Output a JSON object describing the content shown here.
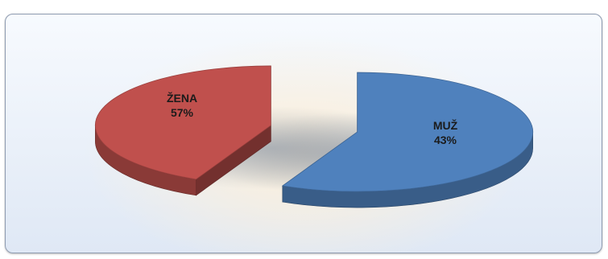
{
  "chart_data": {
    "type": "pie",
    "style": "3d-exploded",
    "categories": [
      "ŽENA",
      "MUŽ"
    ],
    "values": [
      57,
      43
    ],
    "value_labels": [
      "57%",
      "43%"
    ],
    "colors": [
      "#4f81bd",
      "#c0504d"
    ],
    "title": "",
    "legend": "none"
  }
}
